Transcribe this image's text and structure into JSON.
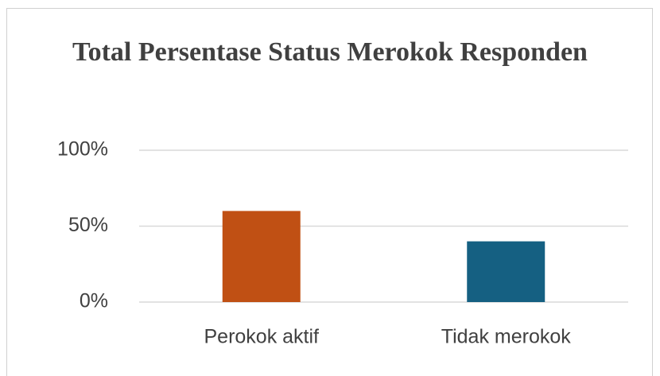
{
  "chart_data": {
    "type": "bar",
    "title": "Total Persentase Status Merokok Responden",
    "categories": [
      "Perokok aktif",
      "Tidak merokok"
    ],
    "values": [
      60,
      40
    ],
    "colors": [
      "#c05014",
      "#156082"
    ],
    "ylim": [
      0,
      100
    ],
    "yticks": [
      {
        "value": 0,
        "label": "0%"
      },
      {
        "value": 50,
        "label": "50%"
      },
      {
        "value": 100,
        "label": "100%"
      }
    ],
    "grid": true
  }
}
